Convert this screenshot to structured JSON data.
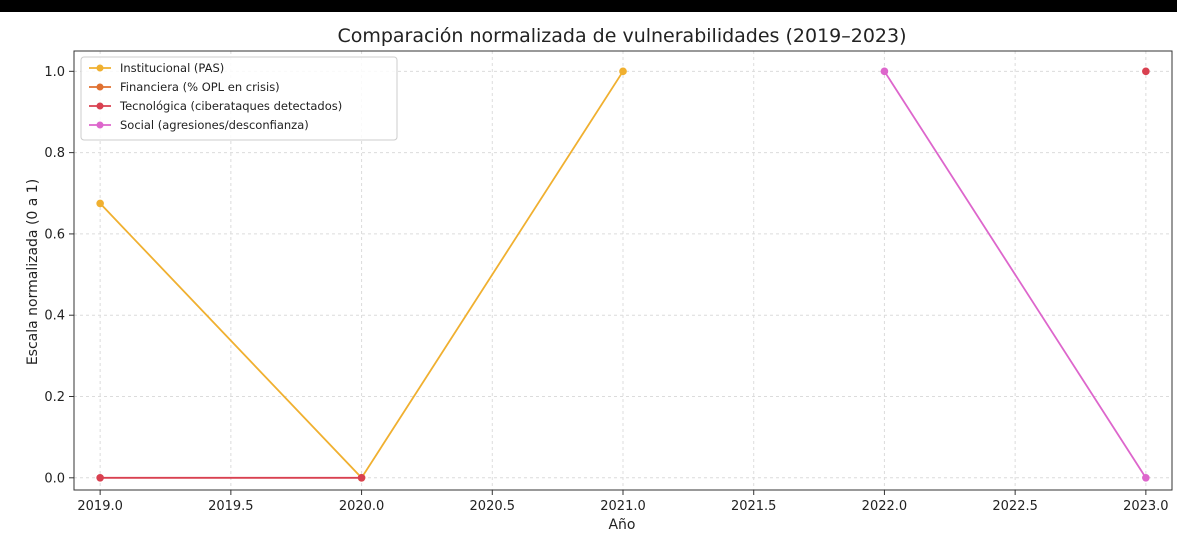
{
  "chart_data": {
    "type": "line",
    "title": "Comparación normalizada de vulnerabilidades (2019–2023)",
    "xlabel": "Año",
    "ylabel": "Escala normalizada (0 a 1)",
    "xlim": [
      2018.9,
      2023.1
    ],
    "ylim": [
      -0.03,
      1.05
    ],
    "xticks": [
      2019.0,
      2019.5,
      2020.0,
      2020.5,
      2021.0,
      2021.5,
      2022.0,
      2022.5,
      2023.0
    ],
    "xtick_labels": [
      "2019.0",
      "2019.5",
      "2020.0",
      "2020.5",
      "2021.0",
      "2021.5",
      "2022.0",
      "2022.5",
      "2023.0"
    ],
    "yticks": [
      0.0,
      0.2,
      0.4,
      0.6,
      0.8,
      1.0
    ],
    "ytick_labels": [
      "0.0",
      "0.2",
      "0.4",
      "0.6",
      "0.8",
      "1.0"
    ],
    "grid": true,
    "legend_position": "top-left",
    "series": [
      {
        "name": "Institucional (PAS)",
        "color": "#f0b030",
        "points": [
          [
            2019,
            0.675
          ],
          [
            2020,
            0.0
          ],
          [
            2021,
            1.0
          ]
        ]
      },
      {
        "name": "Financiera (% OPL en crisis)",
        "color": "#e07030",
        "points": []
      },
      {
        "name": "Tecnológica (ciberataques detectados)",
        "color": "#d94050",
        "points": [
          [
            2019,
            0.0
          ],
          [
            2020,
            0.0
          ]
        ]
      },
      {
        "name": "Social (agresiones/desconfianza)",
        "color": "#dd66cc",
        "points": [
          [
            2022,
            1.0
          ],
          [
            2023,
            0.0
          ]
        ]
      }
    ],
    "extra_points": [
      {
        "series": "Tecnológica (ciberataques detectados)",
        "color": "#d94050",
        "point": [
          2023,
          1.0
        ]
      }
    ]
  }
}
